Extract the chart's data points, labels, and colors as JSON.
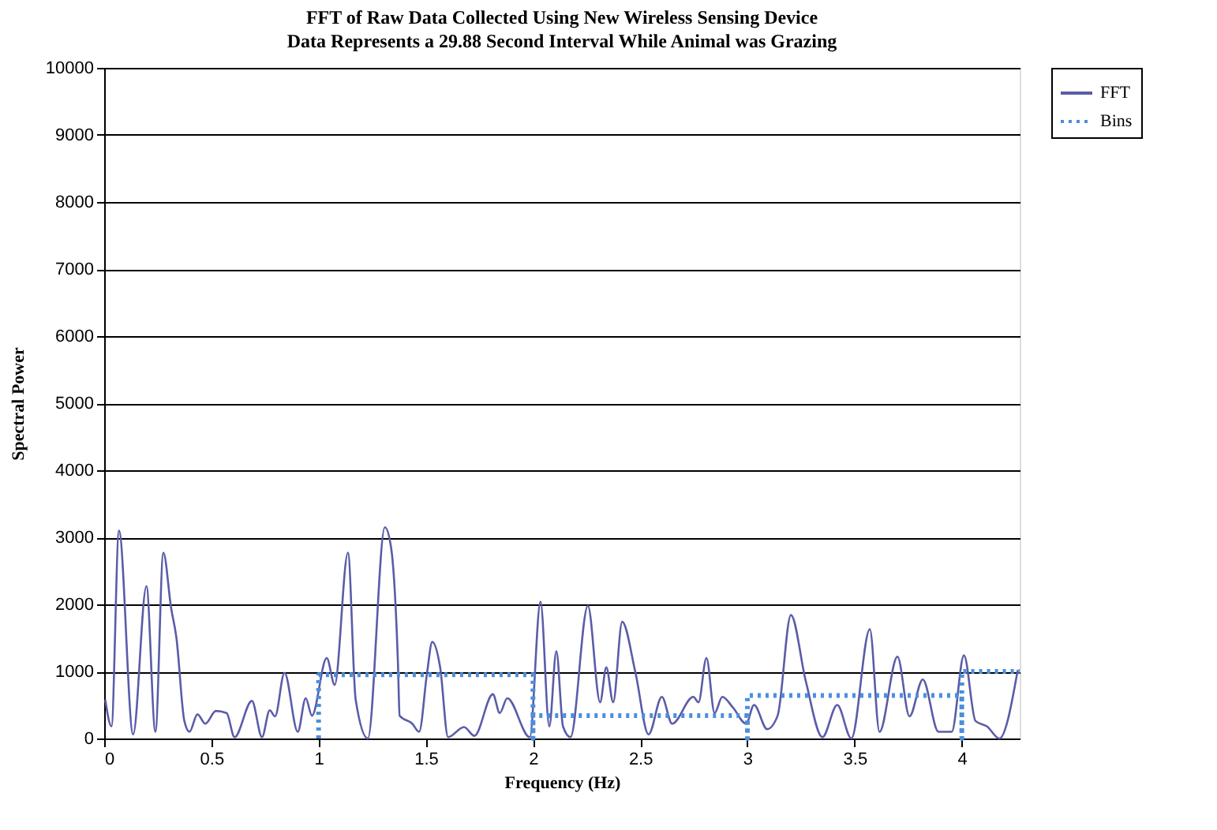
{
  "chart_data": {
    "type": "line",
    "title": "FFT of Raw Data Collected Using New Wireless Sensing Device",
    "subtitle": "Data Represents a 29.88 Second Interval While Animal was Grazing",
    "xlabel": "Frequency (Hz)",
    "ylabel": "Spectral Power",
    "xlim": [
      0,
      4.27
    ],
    "xticks": [
      0,
      0.5,
      1,
      1.5,
      2,
      2.5,
      3,
      3.5,
      4
    ],
    "ylim": [
      0,
      10000
    ],
    "yticks": [
      0,
      1000,
      2000,
      3000,
      4000,
      5000,
      6000,
      7000,
      8000,
      9000,
      10000
    ],
    "grid": "y",
    "legend": "right",
    "marker": "none",
    "series": [
      {
        "name": "FFT",
        "color": "#5a5ca8",
        "line_style": "solid",
        "x": [
          0.005,
          0.034,
          0.069,
          0.135,
          0.197,
          0.239,
          0.276,
          0.312,
          0.337,
          0.374,
          0.398,
          0.435,
          0.472,
          0.521,
          0.571,
          0.608,
          0.689,
          0.736,
          0.772,
          0.797,
          0.841,
          0.903,
          0.94,
          0.969,
          1.038,
          1.075,
          1.137,
          1.173,
          1.23,
          1.309,
          1.338,
          1.37,
          1.378,
          1.437,
          1.469,
          1.506,
          1.53,
          1.567,
          1.604,
          1.678,
          1.727,
          1.813,
          1.845,
          1.88,
          1.985,
          2.035,
          2.076,
          2.109,
          2.14,
          2.175,
          2.256,
          2.313,
          2.342,
          2.374,
          2.416,
          2.478,
          2.539,
          2.601,
          2.649,
          2.748,
          2.772,
          2.809,
          2.847,
          2.883,
          2.933,
          2.994,
          3.031,
          3.092,
          3.141,
          3.203,
          3.272,
          3.35,
          3.419,
          3.485,
          3.571,
          3.616,
          3.7,
          3.756,
          3.818,
          3.891,
          3.953,
          4.01,
          4.064,
          4.118,
          4.175,
          4.261
        ],
        "values": [
          580,
          180,
          3100,
          60,
          2270,
          100,
          2770,
          1950,
          1500,
          260,
          100,
          360,
          220,
          410,
          380,
          20,
          560,
          20,
          420,
          330,
          980,
          100,
          600,
          340,
          1200,
          800,
          2770,
          580,
          0,
          3150,
          2850,
          1140,
          340,
          220,
          100,
          980,
          1440,
          1060,
          20,
          170,
          40,
          660,
          380,
          600,
          20,
          2040,
          180,
          1300,
          180,
          20,
          1980,
          540,
          1060,
          540,
          1740,
          980,
          60,
          620,
          220,
          620,
          540,
          1200,
          380,
          620,
          460,
          220,
          500,
          140,
          340,
          1840,
          860,
          20,
          500,
          0,
          1630,
          100,
          1220,
          330,
          880,
          100,
          100,
          1240,
          260,
          180,
          0,
          1020
        ]
      },
      {
        "name": "Bins",
        "color": "#4a8fdc",
        "line_style": "dotted",
        "x": [
          1,
          1,
          2,
          2,
          2,
          3,
          3,
          3,
          4,
          4,
          4,
          4.27
        ],
        "values": [
          0,
          950,
          950,
          0,
          340,
          340,
          0,
          640,
          640,
          0,
          1000,
          1000
        ]
      }
    ]
  }
}
